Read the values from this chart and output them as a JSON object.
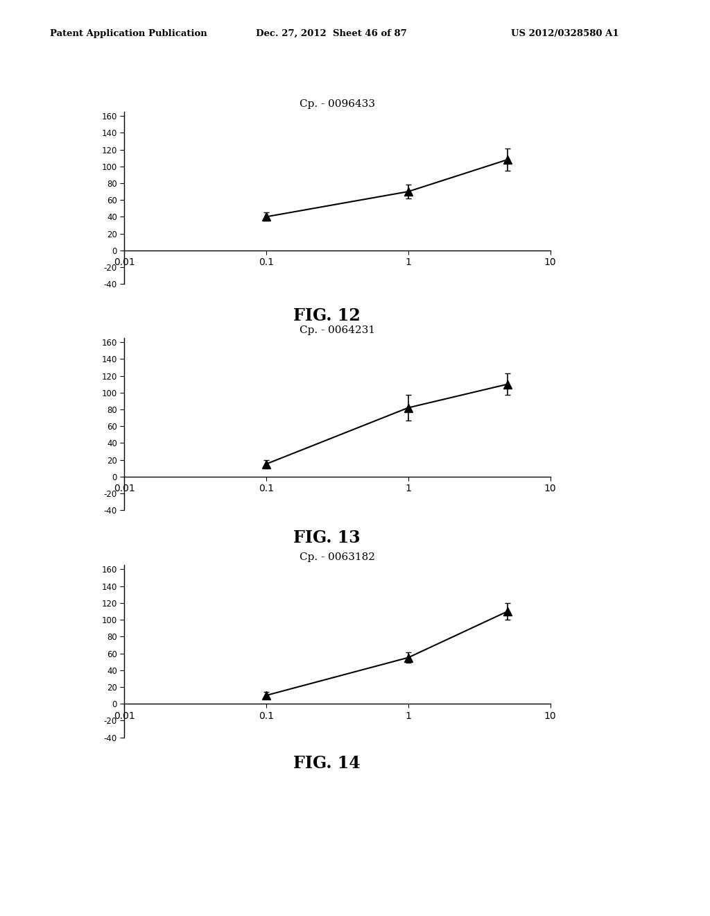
{
  "header_left": "Patent Application Publication",
  "header_center": "Dec. 27, 2012  Sheet 46 of 87",
  "header_right": "US 2012/0328580 A1",
  "charts": [
    {
      "title": "Cp. - 0096433",
      "fig_label": "FIG. 12",
      "x": [
        0.1,
        1.0,
        5.0
      ],
      "y": [
        40,
        70,
        108
      ],
      "yerr": [
        5,
        8,
        13
      ],
      "ylim": [
        -40,
        165
      ],
      "yticks": [
        -40,
        -20,
        0,
        20,
        40,
        60,
        80,
        100,
        120,
        140,
        160
      ]
    },
    {
      "title": "Cp. - 0064231",
      "fig_label": "FIG. 13",
      "x": [
        0.1,
        1.0,
        5.0
      ],
      "y": [
        15,
        82,
        110
      ],
      "yerr": [
        5,
        15,
        13
      ],
      "ylim": [
        -40,
        165
      ],
      "yticks": [
        -40,
        -20,
        0,
        20,
        40,
        60,
        80,
        100,
        120,
        140,
        160
      ]
    },
    {
      "title": "Cp. - 0063182",
      "fig_label": "FIG. 14",
      "x": [
        0.1,
        1.0,
        5.0
      ],
      "y": [
        10,
        55,
        110
      ],
      "yerr": [
        4,
        6,
        10
      ],
      "ylim": [
        -40,
        165
      ],
      "yticks": [
        -40,
        -20,
        0,
        20,
        40,
        60,
        80,
        100,
        120,
        140,
        160
      ]
    }
  ],
  "xlim": [
    0.01,
    10
  ],
  "xticks": [
    0.01,
    0.1,
    1,
    10
  ],
  "xticklabels": [
    "0.01",
    "0.1",
    "1",
    "10"
  ],
  "background_color": "#ffffff",
  "line_color": "#000000",
  "marker_color": "#000000",
  "marker": "^",
  "marker_size": 9,
  "line_width": 1.5
}
